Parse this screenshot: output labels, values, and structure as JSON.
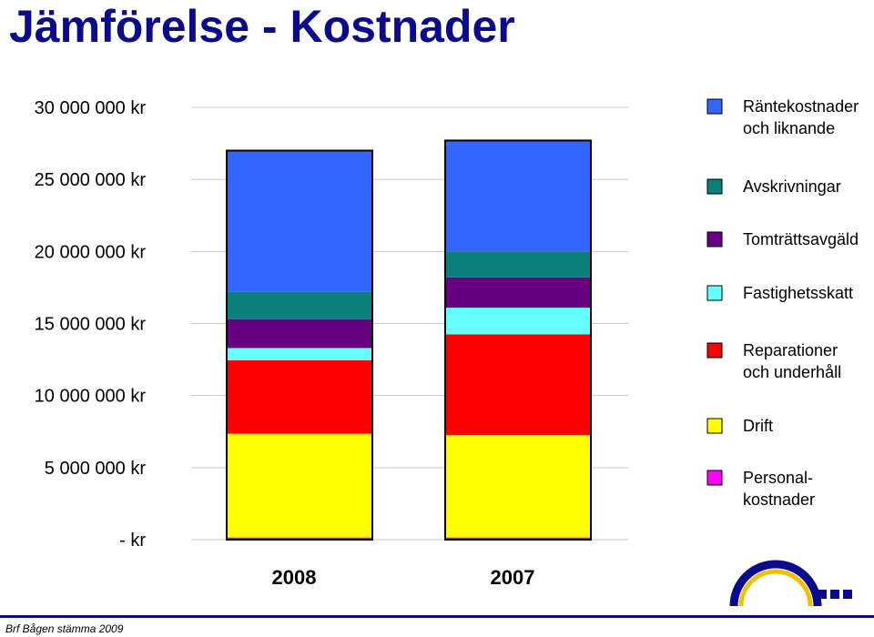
{
  "title": "Jämförelse - Kostnader",
  "footer": "Brf Bågen stämma 2009",
  "chart_data": {
    "type": "bar",
    "stacked": true,
    "categories": [
      "2008",
      "2007"
    ],
    "ylim": [
      0,
      30000000
    ],
    "y_ticks": [
      {
        "value": 30000000,
        "label": "30 000 000 kr"
      },
      {
        "value": 25000000,
        "label": "25 000 000 kr"
      },
      {
        "value": 20000000,
        "label": "20 000 000 kr"
      },
      {
        "value": 15000000,
        "label": "15 000 000 kr"
      },
      {
        "value": 10000000,
        "label": "10 000 000 kr"
      },
      {
        "value": 5000000,
        "label": "5 000 000 kr"
      },
      {
        "value": 0,
        "label": "- kr"
      }
    ],
    "grid": true,
    "legend_position": "right",
    "series": [
      {
        "name": "Personal- kostnader",
        "legend_lines": [
          "Personal-",
          "kostnader"
        ],
        "color": "#ff00ff",
        "values": [
          150000,
          150000
        ]
      },
      {
        "name": "Drift",
        "legend_lines": [
          "Drift"
        ],
        "color": "#ffff00",
        "values": [
          7200000,
          7100000
        ]
      },
      {
        "name": "Reparationer och underhåll",
        "legend_lines": [
          "Reparationer",
          "och underhåll"
        ],
        "color": "#ff0000",
        "values": [
          5100000,
          7000000
        ]
      },
      {
        "name": "Fastighetsskatt",
        "legend_lines": [
          "Fastighetsskatt"
        ],
        "color": "#66ffff",
        "values": [
          850000,
          1850000
        ]
      },
      {
        "name": "Tomträttsavgäld",
        "legend_lines": [
          "Tomträttsavgäld"
        ],
        "color": "#660080",
        "values": [
          2000000,
          2100000
        ]
      },
      {
        "name": "Avskrivningar",
        "legend_lines": [
          "Avskrivningar"
        ],
        "color": "#0b7f7a",
        "values": [
          1900000,
          1800000
        ]
      },
      {
        "name": "Räntekostnader och liknande",
        "legend_lines": [
          "Räntekostnader",
          "och liknande"
        ],
        "color": "#3366ff",
        "values": [
          9800000,
          7700000
        ]
      }
    ]
  }
}
